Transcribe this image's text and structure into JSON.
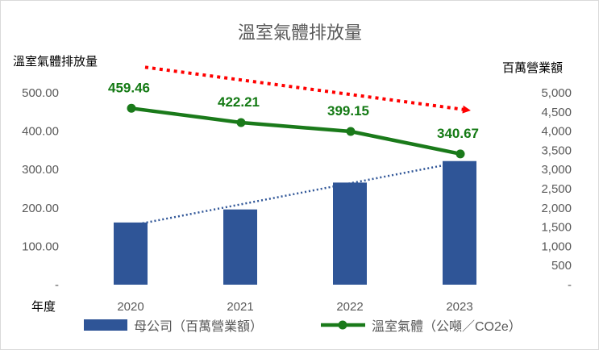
{
  "chart_data": {
    "type": "bar",
    "title": "溫室氣體排放量",
    "y_left_label": "溫室氣體排放量",
    "y_right_label": "百萬營業額",
    "x_label": "年度",
    "categories": [
      "2020",
      "2021",
      "2022",
      "2023"
    ],
    "left_ticks": [
      "-",
      "100.00",
      "200.00",
      "300.00",
      "400.00",
      "500.00"
    ],
    "right_ticks": [
      "-",
      "500",
      "1,000",
      "1,500",
      "2,000",
      "2,500",
      "3,000",
      "3,500",
      "4,000",
      "4,500",
      "5,000"
    ],
    "y_left_lim": [
      0,
      500
    ],
    "y_right_lim": [
      0,
      5000
    ],
    "series": [
      {
        "name": "母公司（百萬營業額）",
        "type": "bar",
        "axis": "right",
        "color": "#2f5597",
        "values": [
          1620,
          1960,
          2660,
          3220
        ]
      },
      {
        "name": "溫室氣體（公噸／CO2e）",
        "type": "line",
        "axis": "left",
        "color": "#1a7a1a",
        "values": [
          459.46,
          422.21,
          399.15,
          340.67
        ],
        "labels": [
          "459.46",
          "422.21",
          "399.15",
          "340.67"
        ]
      }
    ],
    "trendlines": [
      {
        "of": "母公司（百萬營業額）",
        "style": "dotted",
        "color": "#2f5597"
      },
      {
        "of": "溫室氣體（公噸／CO2e）",
        "style": "dotted-arrow",
        "color": "#ff0000"
      }
    ],
    "grid": false,
    "legend": "bottom"
  }
}
